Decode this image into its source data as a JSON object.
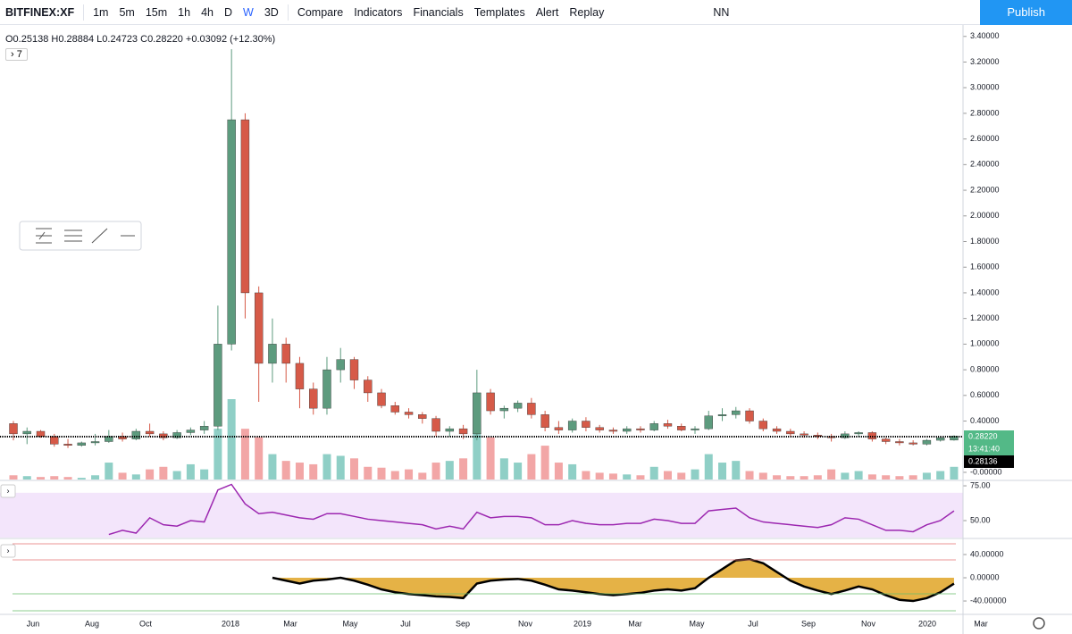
{
  "toolbar": {
    "symbol": "BITFINEX:XF",
    "intervals": [
      "1m",
      "5m",
      "15m",
      "1h",
      "4h",
      "D",
      "W",
      "3D"
    ],
    "compare": "Compare",
    "indicators": "Indicators",
    "financials": "Financials",
    "templates": "Templates",
    "alert": "Alert",
    "replay": "Replay",
    "layout": "NN",
    "publish": "Publish"
  },
  "header": {
    "open": "O0.25138",
    "high": "H0.28884",
    "low": "L0.24723",
    "close": "C0.28220",
    "change": "+0.03092 (+12.30%)",
    "legend_toggle": "7"
  },
  "time_axis": [
    "Jun",
    "Aug",
    "Oct",
    "2018",
    "Mar",
    "May",
    "Jul",
    "Sep",
    "Nov",
    "2019",
    "Mar",
    "May",
    "Jul",
    "Sep",
    "Nov",
    "2020",
    "Mar"
  ],
  "price_tags": {
    "last": "0.28220",
    "countdown": "13:41:40",
    "other": "0.28136"
  },
  "chart_data": {
    "type": "candlestick",
    "ylim": [
      -0.056,
      3.475
    ],
    "yticks": [
      {
        "value": 3.4,
        "label": "3.40000"
      },
      {
        "value": 3.2,
        "label": "3.20000"
      },
      {
        "value": 3.0,
        "label": "3.00000"
      },
      {
        "value": 2.8,
        "label": "2.80000"
      },
      {
        "value": 2.6,
        "label": "2.60000"
      },
      {
        "value": 2.4,
        "label": "2.40000"
      },
      {
        "value": 2.2,
        "label": "2.20000"
      },
      {
        "value": 2.0,
        "label": "2.00000"
      },
      {
        "value": 1.8,
        "label": "1.80000"
      },
      {
        "value": 1.6,
        "label": "1.60000"
      },
      {
        "value": 1.4,
        "label": "1.40000"
      },
      {
        "value": 1.2,
        "label": "1.20000"
      },
      {
        "value": 1.0,
        "label": "1.00000"
      },
      {
        "value": 0.8,
        "label": "0.80000"
      },
      {
        "value": 0.6,
        "label": "0.60000"
      },
      {
        "value": 0.4,
        "label": "0.40000"
      },
      {
        "value": 0,
        "label": "-0.00000"
      }
    ],
    "up_color": "#5d9b7e",
    "down_color": "#d65a48",
    "up_volume_color": "#8fcfc6",
    "down_volume_color": "#f2a6a6",
    "open": [
      0.38,
      0.3,
      0.32,
      0.28,
      0.22,
      0.21,
      0.23,
      0.24,
      0.28,
      0.26,
      0.32,
      0.3,
      0.27,
      0.31,
      0.33,
      0.36,
      1.0,
      2.75,
      1.4,
      0.85,
      1.0,
      0.85,
      0.65,
      0.5,
      0.8,
      0.88,
      0.72,
      0.62,
      0.52,
      0.47,
      0.45,
      0.42,
      0.32,
      0.34,
      0.3,
      0.62,
      0.48,
      0.5,
      0.54,
      0.45,
      0.35,
      0.33,
      0.4,
      0.35,
      0.33,
      0.32,
      0.34,
      0.33,
      0.38,
      0.36,
      0.33,
      0.34,
      0.44,
      0.45,
      0.48,
      0.4,
      0.34,
      0.32,
      0.3,
      0.29,
      0.28,
      0.27,
      0.3,
      0.31,
      0.26,
      0.24,
      0.23,
      0.22,
      0.25,
      0.2514
    ],
    "high": [
      0.4,
      0.35,
      0.33,
      0.3,
      0.26,
      0.24,
      0.3,
      0.33,
      0.31,
      0.34,
      0.38,
      0.32,
      0.33,
      0.35,
      0.4,
      1.3,
      3.3,
      2.8,
      1.45,
      1.2,
      1.05,
      0.9,
      0.7,
      0.9,
      0.97,
      0.9,
      0.75,
      0.65,
      0.55,
      0.5,
      0.47,
      0.44,
      0.36,
      0.37,
      0.8,
      0.65,
      0.52,
      0.56,
      0.58,
      0.48,
      0.4,
      0.42,
      0.43,
      0.37,
      0.35,
      0.36,
      0.36,
      0.4,
      0.41,
      0.38,
      0.36,
      0.48,
      0.5,
      0.51,
      0.5,
      0.42,
      0.36,
      0.34,
      0.32,
      0.31,
      0.3,
      0.32,
      0.32,
      0.32,
      0.27,
      0.26,
      0.25,
      0.26,
      0.28,
      0.2888
    ],
    "low": [
      0.25,
      0.22,
      0.27,
      0.2,
      0.19,
      0.2,
      0.21,
      0.23,
      0.24,
      0.25,
      0.28,
      0.25,
      0.26,
      0.29,
      0.3,
      0.33,
      0.95,
      1.2,
      0.55,
      0.7,
      0.7,
      0.5,
      0.45,
      0.45,
      0.7,
      0.65,
      0.55,
      0.5,
      0.45,
      0.42,
      0.38,
      0.28,
      0.28,
      0.26,
      0.25,
      0.45,
      0.42,
      0.47,
      0.42,
      0.32,
      0.3,
      0.31,
      0.32,
      0.31,
      0.3,
      0.3,
      0.31,
      0.32,
      0.34,
      0.32,
      0.3,
      0.33,
      0.4,
      0.42,
      0.38,
      0.32,
      0.3,
      0.28,
      0.27,
      0.26,
      0.24,
      0.26,
      0.28,
      0.24,
      0.22,
      0.21,
      0.21,
      0.21,
      0.24,
      0.2472
    ],
    "close": [
      0.3,
      0.32,
      0.28,
      0.22,
      0.21,
      0.23,
      0.24,
      0.28,
      0.26,
      0.32,
      0.3,
      0.27,
      0.31,
      0.33,
      0.36,
      1.0,
      2.75,
      1.4,
      0.85,
      1.0,
      0.85,
      0.65,
      0.5,
      0.8,
      0.88,
      0.72,
      0.62,
      0.52,
      0.47,
      0.45,
      0.42,
      0.32,
      0.34,
      0.3,
      0.62,
      0.48,
      0.5,
      0.54,
      0.45,
      0.35,
      0.33,
      0.4,
      0.35,
      0.33,
      0.32,
      0.34,
      0.33,
      0.38,
      0.36,
      0.33,
      0.34,
      0.44,
      0.45,
      0.48,
      0.4,
      0.34,
      0.32,
      0.3,
      0.29,
      0.28,
      0.27,
      0.3,
      0.31,
      0.26,
      0.24,
      0.23,
      0.22,
      0.25,
      0.27,
      0.2822
    ],
    "volume": [
      5,
      4,
      3,
      4,
      3,
      2,
      5,
      20,
      8,
      6,
      12,
      15,
      10,
      18,
      12,
      60,
      95,
      60,
      50,
      30,
      22,
      20,
      18,
      30,
      28,
      25,
      15,
      14,
      10,
      12,
      8,
      20,
      22,
      25,
      65,
      50,
      25,
      20,
      30,
      40,
      20,
      18,
      10,
      8,
      7,
      6,
      5,
      15,
      10,
      8,
      12,
      30,
      20,
      22,
      10,
      8,
      5,
      4,
      4,
      5,
      12,
      8,
      10,
      6,
      5,
      4,
      5,
      8,
      10,
      15
    ],
    "rsi": {
      "color": "#9c27b0",
      "ylim": [
        37.8,
        77.6
      ],
      "yticks": [
        {
          "value": 75,
          "label": "75.00"
        },
        {
          "value": 50,
          "label": "50.00"
        }
      ],
      "values": [
        null,
        null,
        null,
        null,
        null,
        null,
        null,
        40,
        43,
        41,
        52,
        47,
        46,
        50,
        49,
        72,
        76,
        62,
        55,
        56,
        54,
        52,
        51,
        55,
        55,
        53,
        51,
        50,
        49,
        48,
        47,
        44,
        46,
        44,
        56,
        52,
        53,
        53,
        52,
        47,
        47,
        50,
        48,
        47,
        47,
        48,
        48,
        51,
        50,
        48,
        48,
        57,
        58,
        59,
        52,
        49,
        48,
        47,
        46,
        45,
        47,
        52,
        51,
        47,
        43,
        43,
        42,
        47,
        50,
        57
      ]
    },
    "oscillator": {
      "color": "#e0a526",
      "line_color": "#000000",
      "ylim": [
        -63,
        64.6
      ],
      "yticks": [
        {
          "value": 40,
          "label": "40.00000"
        },
        {
          "value": 0,
          "label": "0.00000"
        },
        {
          "value": -40,
          "label": "-40.00000"
        }
      ],
      "values": [
        null,
        null,
        null,
        null,
        null,
        null,
        null,
        null,
        null,
        null,
        null,
        null,
        null,
        null,
        null,
        null,
        null,
        null,
        null,
        0,
        -5,
        -10,
        -5,
        -3,
        0,
        -5,
        -12,
        -20,
        -25,
        -28,
        -30,
        -32,
        -33,
        -35,
        -10,
        -5,
        -3,
        -2,
        -5,
        -12,
        -20,
        -22,
        -25,
        -28,
        -30,
        -28,
        -26,
        -22,
        -20,
        -22,
        -18,
        0,
        15,
        30,
        32,
        25,
        10,
        -5,
        -15,
        -22,
        -28,
        -22,
        -15,
        -20,
        -30,
        -38,
        -40,
        -35,
        -25,
        -10
      ]
    }
  }
}
